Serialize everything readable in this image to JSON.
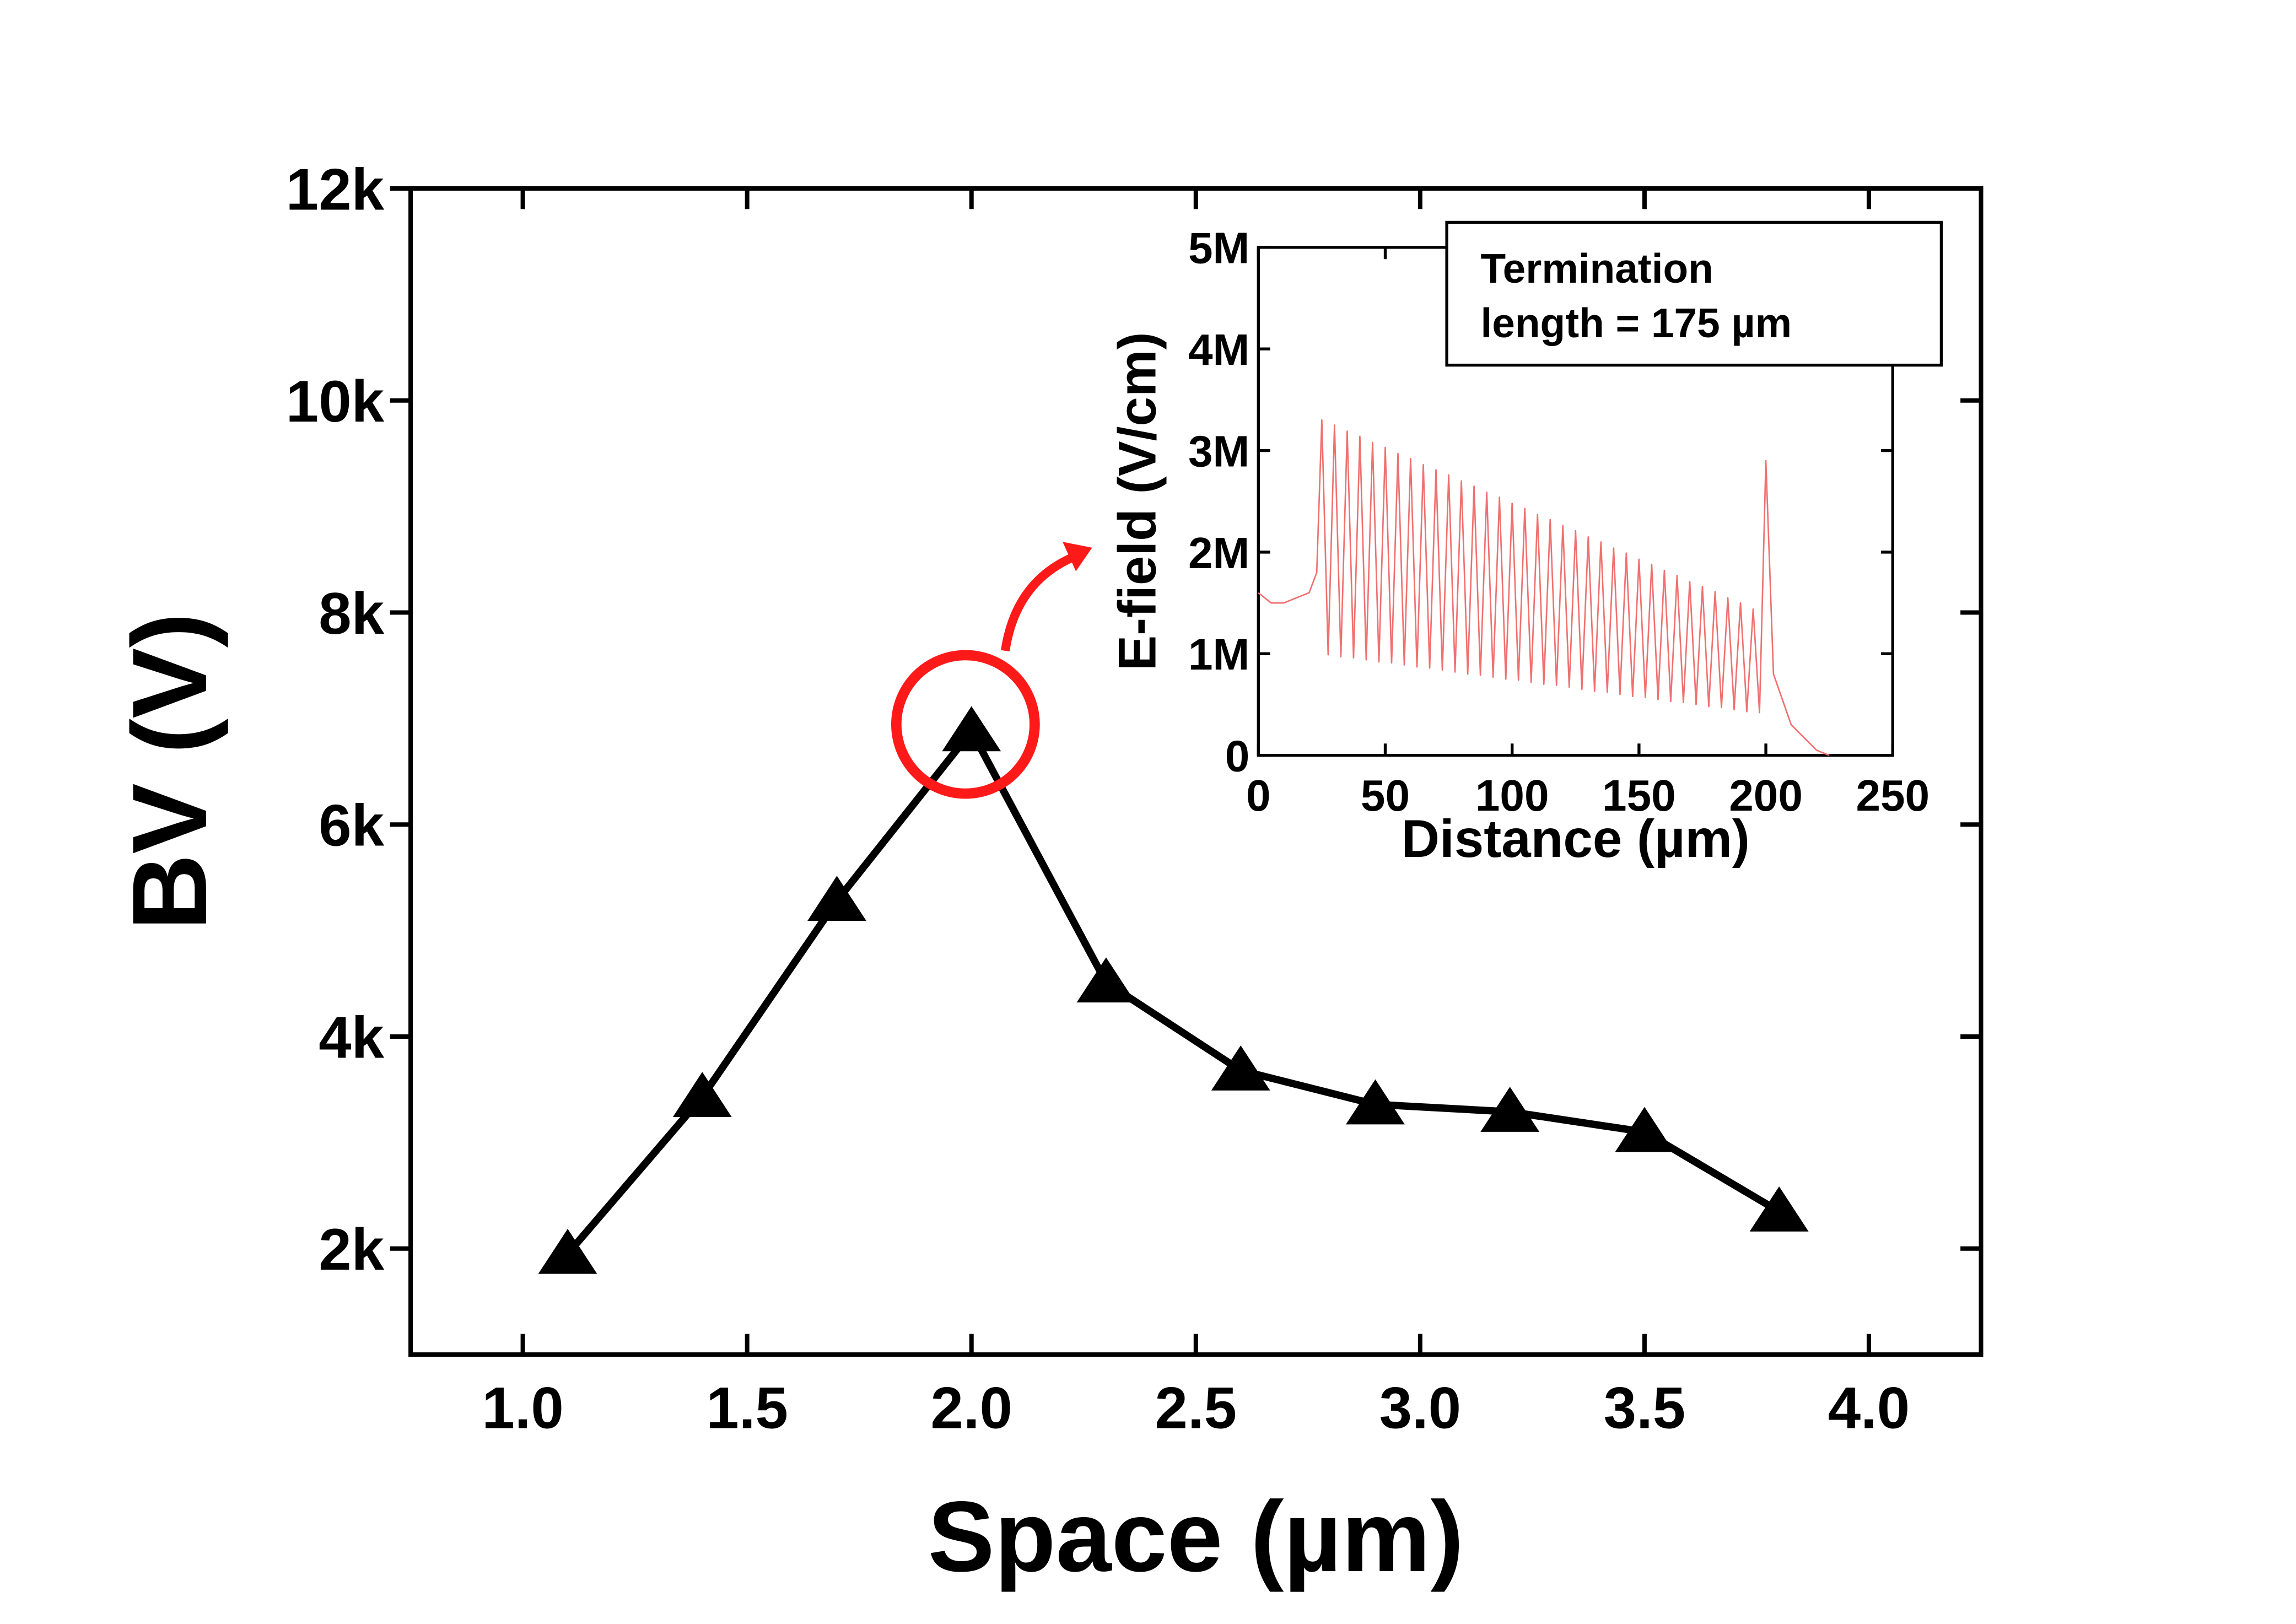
{
  "chart_data": [
    {
      "type": "line",
      "x_label": "Space (µm)",
      "y_label": "BV (V)",
      "x": [
        1.1,
        1.4,
        1.7,
        2.0,
        2.3,
        2.6,
        2.9,
        3.2,
        3.5,
        3.8
      ],
      "series": [
        {
          "color": "#000000",
          "marker": "triangle",
          "values": [
            1950,
            3430,
            5280,
            6880,
            4510,
            3680,
            3360,
            3290,
            3100,
            2350
          ]
        }
      ],
      "xlim": [
        0.75,
        4.25
      ],
      "xticks": [
        {
          "value": 1,
          "label": "1.0"
        },
        1.5,
        {
          "value": 2,
          "label": "2.0"
        },
        2.5,
        {
          "value": 3,
          "label": "3.0"
        },
        3.5,
        {
          "value": 4,
          "label": "4.0"
        }
      ],
      "ylim": [
        1000,
        12000
      ],
      "yticks": [
        {
          "value": 2000,
          "label": "2k"
        },
        {
          "value": 4000,
          "label": "4k"
        },
        {
          "value": 6000,
          "label": "6k"
        },
        {
          "value": 8000,
          "label": "8k"
        },
        {
          "value": 10000,
          "label": "10k"
        },
        {
          "value": 12000,
          "label": "12k"
        }
      ]
    },
    {
      "type": "line",
      "x_label": "Distance (µm)",
      "y_label": "E-field (V/cm)",
      "annotation": [
        "Termination",
        "length = 175 µm"
      ],
      "x": [
        0,
        5,
        10,
        20,
        23,
        25,
        27.5,
        30,
        32.5,
        35,
        37.5,
        40,
        42.5,
        45,
        47.5,
        50,
        52.5,
        55,
        57.5,
        60,
        62.5,
        65,
        67.5,
        70,
        72.5,
        75,
        77.5,
        80,
        82.5,
        85,
        87.5,
        90,
        92.5,
        95,
        97.5,
        100,
        102.5,
        105,
        107.5,
        110,
        112.5,
        115,
        117.5,
        120,
        122.5,
        125,
        127.5,
        130,
        132.5,
        135,
        137.5,
        140,
        142.5,
        145,
        147.5,
        150,
        152.5,
        155,
        157.5,
        160,
        162.5,
        165,
        167.5,
        170,
        172.5,
        175,
        177.5,
        180,
        182.5,
        185,
        187.5,
        190,
        192.5,
        195,
        197.5,
        200,
        203,
        210,
        220,
        225
      ],
      "series": [
        {
          "color": "#f07070",
          "values": [
            1600000,
            1500000,
            1500000,
            1600000,
            1800000,
            3300000,
            990000,
            3250000,
            970000,
            3190000,
            960000,
            3140000,
            940000,
            3080000,
            920000,
            3030000,
            910000,
            2970000,
            890000,
            2920000,
            870000,
            2860000,
            860000,
            2810000,
            840000,
            2760000,
            820000,
            2700000,
            800000,
            2650000,
            790000,
            2590000,
            770000,
            2540000,
            750000,
            2480000,
            740000,
            2430000,
            720000,
            2370000,
            700000,
            2320000,
            690000,
            2260000,
            670000,
            2210000,
            650000,
            2150000,
            630000,
            2100000,
            620000,
            2040000,
            600000,
            1990000,
            580000,
            1930000,
            570000,
            1880000,
            550000,
            1820000,
            530000,
            1770000,
            520000,
            1710000,
            500000,
            1660000,
            480000,
            1610000,
            470000,
            1550000,
            450000,
            1500000,
            430000,
            1440000,
            420000,
            2900000,
            800000,
            300000,
            50000,
            0
          ]
        }
      ],
      "xlim": [
        0,
        250
      ],
      "xticks": [
        0,
        50,
        100,
        150,
        200,
        250
      ],
      "ylim": [
        0,
        5000000
      ],
      "yticks": [
        0,
        {
          "value": 1000000,
          "label": "1M"
        },
        {
          "value": 2000000,
          "label": "2M"
        },
        {
          "value": 3000000,
          "label": "3M"
        },
        {
          "value": 4000000,
          "label": "4M"
        },
        {
          "value": 5000000,
          "label": "5M"
        }
      ]
    }
  ]
}
